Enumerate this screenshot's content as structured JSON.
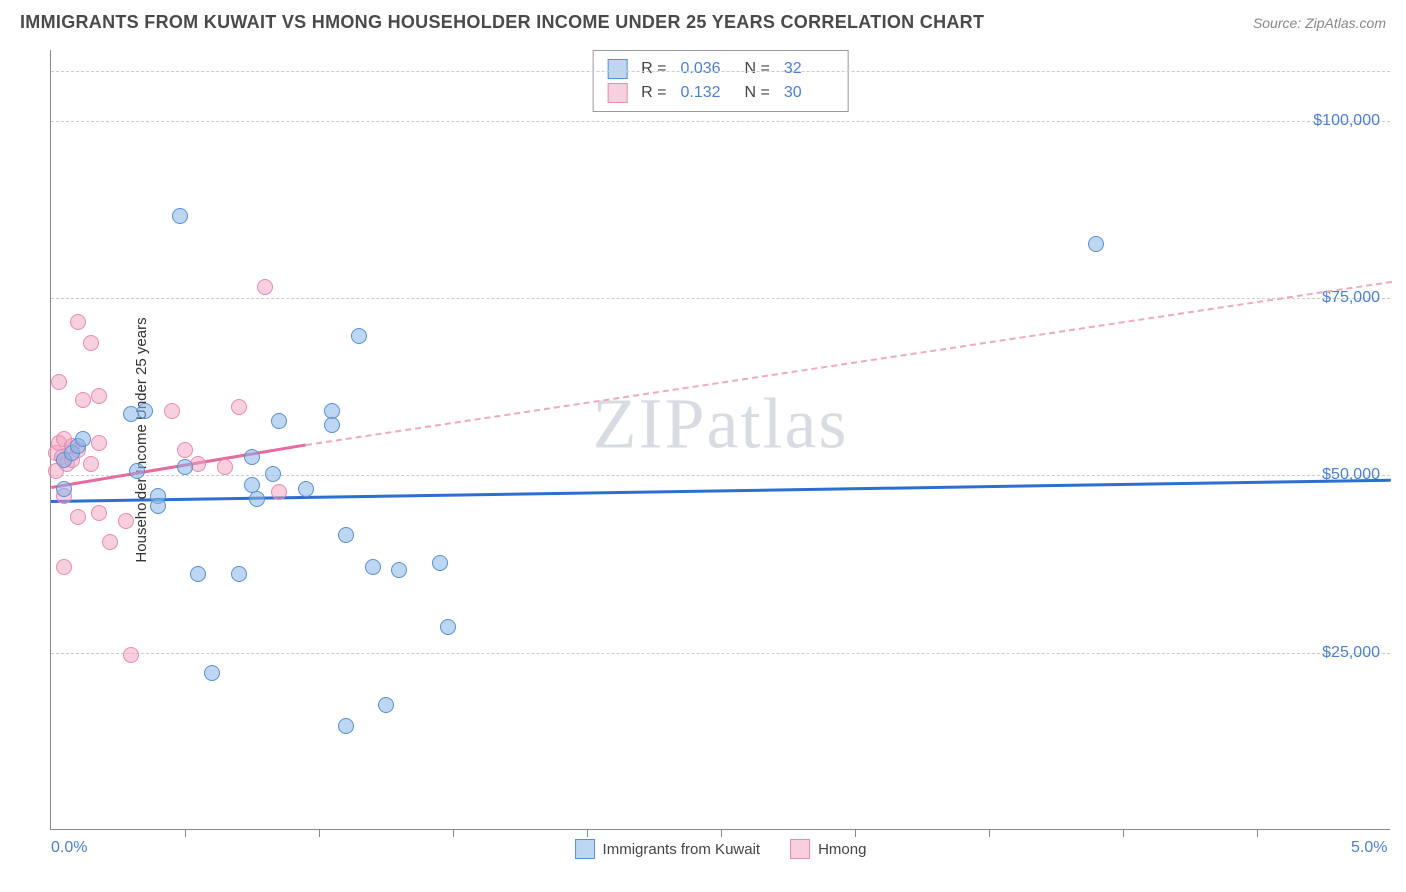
{
  "header": {
    "title": "IMMIGRANTS FROM KUWAIT VS HMONG HOUSEHOLDER INCOME UNDER 25 YEARS CORRELATION CHART",
    "source": "Source: ZipAtlas.com"
  },
  "watermark": {
    "part1": "ZIP",
    "part2": "atlas"
  },
  "chart": {
    "type": "scatter",
    "xlim": [
      0.0,
      5.0
    ],
    "ylim": [
      0,
      110000
    ],
    "x_ticks": [
      0.0,
      5.0
    ],
    "x_tick_labels": [
      "0.0%",
      "5.0%"
    ],
    "x_minor_ticks": [
      0.5,
      1.0,
      1.5,
      2.0,
      2.5,
      3.0,
      3.5,
      4.0,
      4.5
    ],
    "y_gridlines": [
      25000,
      50000,
      75000,
      100000,
      107000
    ],
    "y_tick_labels": [
      "$25,000",
      "$50,000",
      "$75,000",
      "$100,000",
      ""
    ],
    "y_axis_title": "Householder Income Under 25 years",
    "marker_radius": 8,
    "background_color": "#ffffff",
    "grid_color": "#cccccc",
    "axis_color": "#888888",
    "series": {
      "blue": {
        "label": "Immigrants from Kuwait",
        "color_fill": "rgba(135,180,230,0.55)",
        "color_stroke": "#5b8fd0",
        "R": "0.036",
        "N": "32",
        "trend": {
          "x1": 0.0,
          "y1": 46500,
          "x2": 5.0,
          "y2": 49500,
          "color": "#2d6fd0",
          "width": 3
        },
        "points": [
          [
            0.05,
            52000
          ],
          [
            0.05,
            48000
          ],
          [
            0.08,
            53000
          ],
          [
            0.1,
            54000
          ],
          [
            0.12,
            55000
          ],
          [
            0.48,
            86500
          ],
          [
            0.3,
            58500
          ],
          [
            0.35,
            59000
          ],
          [
            0.4,
            47000
          ],
          [
            0.4,
            45500
          ],
          [
            0.32,
            50500
          ],
          [
            0.5,
            51000
          ],
          [
            0.55,
            36000
          ],
          [
            0.6,
            22000
          ],
          [
            0.75,
            52500
          ],
          [
            0.75,
            48500
          ],
          [
            0.7,
            36000
          ],
          [
            0.77,
            46500
          ],
          [
            0.85,
            57500
          ],
          [
            0.83,
            50000
          ],
          [
            0.95,
            48000
          ],
          [
            1.05,
            59000
          ],
          [
            1.05,
            57000
          ],
          [
            1.15,
            69500
          ],
          [
            1.1,
            41500
          ],
          [
            1.1,
            14500
          ],
          [
            1.2,
            37000
          ],
          [
            1.25,
            17500
          ],
          [
            1.3,
            36500
          ],
          [
            1.48,
            28500
          ],
          [
            1.45,
            37500
          ],
          [
            3.9,
            82500
          ]
        ]
      },
      "pink": {
        "label": "Hmong",
        "color_fill": "rgba(240,160,190,0.5)",
        "color_stroke": "#e88bb0",
        "R": "0.132",
        "N": "30",
        "trend_solid": {
          "x1": 0.0,
          "y1": 48500,
          "x2": 0.95,
          "y2": 54500,
          "color": "#e86aa0",
          "width": 3
        },
        "trend_dash": {
          "x1": 0.95,
          "y1": 54500,
          "x2": 5.0,
          "y2": 77500,
          "color": "#f0a8c5",
          "width": 2
        },
        "points": [
          [
            0.02,
            53000
          ],
          [
            0.02,
            50500
          ],
          [
            0.03,
            63000
          ],
          [
            0.03,
            54500
          ],
          [
            0.05,
            55000
          ],
          [
            0.04,
            52500
          ],
          [
            0.06,
            51500
          ],
          [
            0.05,
            47000
          ],
          [
            0.05,
            37000
          ],
          [
            0.08,
            54000
          ],
          [
            0.08,
            52000
          ],
          [
            0.1,
            71500
          ],
          [
            0.1,
            53500
          ],
          [
            0.1,
            44000
          ],
          [
            0.12,
            60500
          ],
          [
            0.15,
            68500
          ],
          [
            0.15,
            51500
          ],
          [
            0.18,
            54500
          ],
          [
            0.18,
            44500
          ],
          [
            0.18,
            61000
          ],
          [
            0.22,
            40500
          ],
          [
            0.28,
            43500
          ],
          [
            0.3,
            24500
          ],
          [
            0.45,
            59000
          ],
          [
            0.5,
            53500
          ],
          [
            0.55,
            51500
          ],
          [
            0.65,
            51000
          ],
          [
            0.7,
            59500
          ],
          [
            0.8,
            76500
          ],
          [
            0.85,
            47500
          ]
        ]
      }
    },
    "stat_legend_labels": {
      "R": "R =",
      "N": "N ="
    },
    "bottom_legend": {
      "items": [
        {
          "series": "blue",
          "label": "Immigrants from Kuwait"
        },
        {
          "series": "pink",
          "label": "Hmong"
        }
      ]
    }
  }
}
